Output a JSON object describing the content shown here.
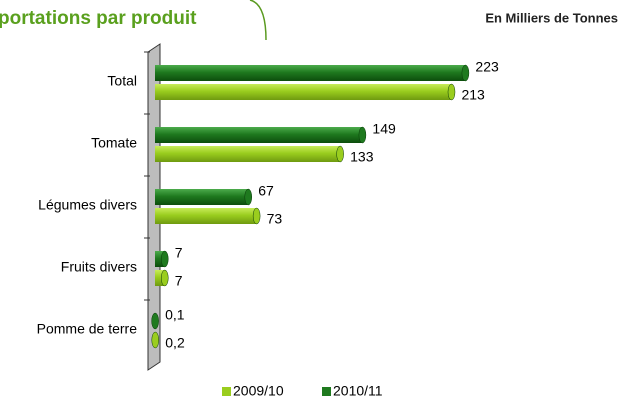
{
  "chart_data": {
    "type": "bar",
    "orientation": "horizontal",
    "title": "portations par produit",
    "subtitle": "En Milliers de Tonnes",
    "categories": [
      "Total",
      "Tomate",
      "Légumes divers",
      "Fruits divers",
      "Pomme de terre"
    ],
    "series": [
      {
        "name": "2009/10",
        "color": "#9acd1e",
        "values": [
          213,
          133,
          73,
          7,
          0.2
        ],
        "value_labels": [
          "213",
          "133",
          "73",
          "7",
          "0,2"
        ]
      },
      {
        "name": "2010/11",
        "color": "#1f7a1f",
        "values": [
          223,
          149,
          67,
          7,
          0.1
        ],
        "value_labels": [
          "223",
          "149",
          "67",
          "7",
          "0,1"
        ]
      }
    ],
    "xlim": [
      0,
      250
    ],
    "legend": "bottom"
  }
}
